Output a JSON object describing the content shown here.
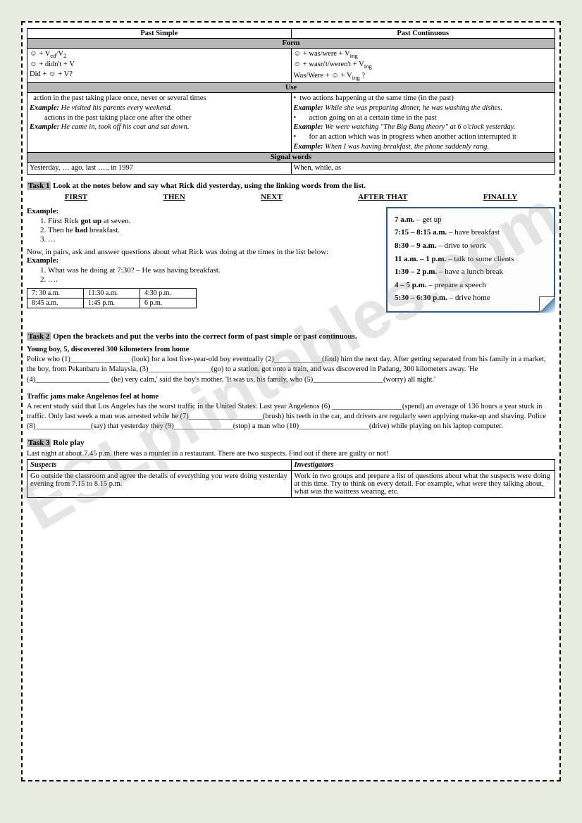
{
  "watermark": "ESLprintables.com",
  "grammar": {
    "col1_header": "Past Simple",
    "col2_header": "Past Continuous",
    "sections": {
      "form": "Form",
      "use": "Use",
      "signal": "Signal words"
    },
    "form_left": "☺ + V<sub>ed</sub>/V<sub>2</sub><br>☺ + didn't + V<br>Did + ☺ + V?",
    "form_right": "☺ + was/were + V<sub>ing</sub><br>☺ + wasn't/weren't + V<sub>ing</sub><br>Was/Were + ☺ + V<sub>ing</sub> ?",
    "use_left": "&nbsp;&nbsp;action in the past taking place once, never or several times<br><span class='italic bold'>Example:</span> <span class='italic'>He visited his parents every weekend.</span><br>&nbsp;&nbsp;&nbsp;&nbsp;&nbsp;&nbsp;&nbsp;&nbsp;actions in the past taking place one after the other<br><span class='italic bold'>Example:</span> <span class='italic'>He came in, took off his coat and sat down.</span>",
    "use_right": "• &nbsp;two actions happening at the same time (in the past)<br><span class='italic bold'>Example:</span> <span class='italic'>While she was preparing dinner, he was washing the dishes.</span><br>• &nbsp;&nbsp;&nbsp;&nbsp;&nbsp;&nbsp;action going on at a certain time in the past<br><span class='italic bold'>Example:</span> <span class='italic'>We were watching \"The Big Bang theory\" at 6 o'clock yesterday.</span><br>• &nbsp;&nbsp;&nbsp;&nbsp;&nbsp;&nbsp;for an action which was in progress when another action interrupted it<br><span class='italic bold'>Example:</span> <span class='italic'>When I was having breakfast, the phone suddenly rang.</span>",
    "signal_left": "Yesterday, … ago, last …., in 1997",
    "signal_right": "When, while, as"
  },
  "task1": {
    "label": "Task 1",
    "instruction": "Look at the notes below and say what Rick did yesterday, using the linking words from the list.",
    "linking": [
      "FIRST",
      "THEN",
      "NEXT",
      "AFTER THAT",
      "FINALLY"
    ],
    "example_label": "Example:",
    "examples1": [
      "First Rick <b>got up</b> at seven.",
      "Then he <b>had</b> breakfast.",
      "…"
    ],
    "pairs_instruction": "Now, in pairs, ask and answer questions about what Rick was doing at the times in the list below:",
    "examples2": [
      "What was he doing at 7:30? – He was having breakfast.",
      "…."
    ],
    "time_table": [
      [
        "7: 30 a.m.",
        "11:30 a.m.",
        "4:30 p.m."
      ],
      [
        "8:45 a.m.",
        "1:45 p.m.",
        "6 p.m."
      ]
    ],
    "schedule": [
      {
        "time": "7 a.m.",
        "activity": "– get up"
      },
      {
        "time": "7:15 – 8:15 a.m.",
        "activity": "– have breakfast"
      },
      {
        "time": "8:30 – 9 a.m.",
        "activity": "– drive to work"
      },
      {
        "time": "11 a.m. – 1 p.m.",
        "activity": "– talk to some clients"
      },
      {
        "time": "1:30 – 2 p.m.",
        "activity": "– have a lunch break"
      },
      {
        "time": "4 – 5 p.m.",
        "activity": "– prepare a speech"
      },
      {
        "time": "5:30 – 6:30 p.m.",
        "activity": "– drive home"
      }
    ]
  },
  "task2": {
    "label": "Task 2",
    "instruction": "Open the brackets and put the verbs into the correct form of past simple or past continuous.",
    "story1_title": "Young boy, 5, discovered 300 kilometers from home",
    "story1_text": "Police who (1)________________ (look) for a lost five-year-old boy eventually (2)_____________(find) him the next day. After getting separated from his family in a market, the boy, from Pekanbaru in Malaysia, (3)_________________(go) to a station, got onto a train, and was discovered in Padang, 300 kilometers away. 'He (4)____________________ (be) very calm,' said the boy's mother. 'It was us, his family, who (5)___________________(worry) all night.'",
    "story2_title": "Traffic jams make Angelenos feel at home",
    "story2_text": "A recent study said that Los Angeles has the worst traffic in the United States. Last year Angelenos (6) ___________________(spend) an average of 136 hours a year stuck in traffic. Only last week a man was arrested while he (7)____________________(brush) his teeth in the car, and drivers are regularly seen applying make-up and shaving. Police (8)_______________(say) that yesterday they (9)________________(stop) a man who (10)___________________(drive) while playing on his laptop computer."
  },
  "task3": {
    "label": "Task 3",
    "instruction": "Role play",
    "intro": "Last night at about 7.45 p.m. there was a murder in a restaurant. There are two suspects. Find out if there are guilty or not!",
    "cols": {
      "suspects_h": "Suspects",
      "investigators_h": "Investigators",
      "suspects": "Go outside the classroom and agree the details of everything you were doing yesterday evening from 7.15 to 8.15 p.m.",
      "investigators": "Work in two groups and prepare a list of questions about what the suspects were doing at this time. Try to think on every detail. For example, what were they talking about, what was the waitress wearing, etc."
    }
  }
}
